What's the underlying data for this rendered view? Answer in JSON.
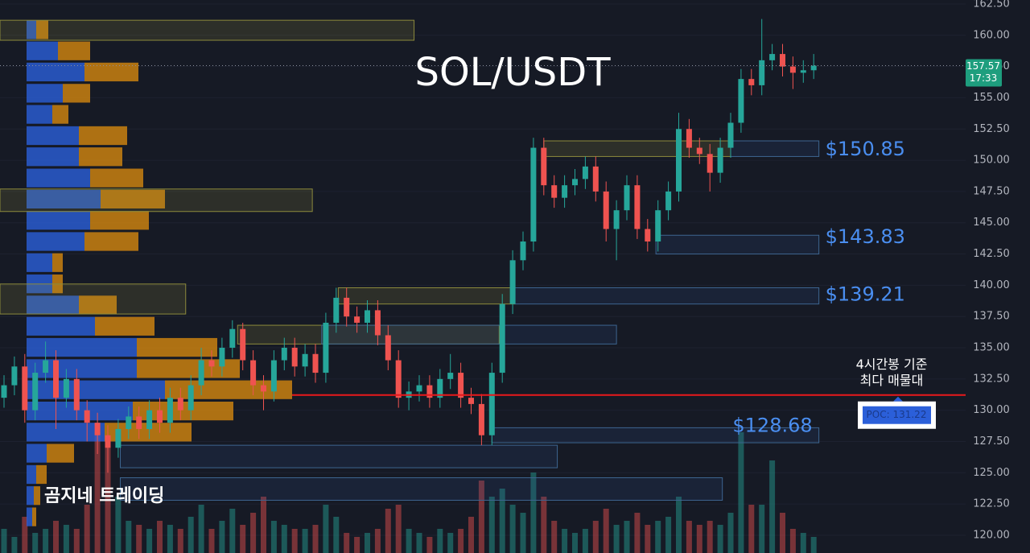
{
  "chart_data": {
    "type": "candlestick",
    "title": "SOL/USDT",
    "watermark": "곰지네 트레이딩",
    "up_color": "#26a69a",
    "down_color": "#ef5350",
    "grid": true,
    "ylim": [
      118.58,
      162.82
    ],
    "yticks": [
      {
        "value": 162.5,
        "label": "162.50"
      },
      {
        "value": 160,
        "label": "160.00"
      },
      {
        "value": 157.5,
        "label": "157.50"
      },
      {
        "value": 155,
        "label": "155.00"
      },
      {
        "value": 152.5,
        "label": "152.50"
      },
      {
        "value": 150,
        "label": "150.00"
      },
      {
        "value": 147.5,
        "label": "147.50"
      },
      {
        "value": 145,
        "label": "145.00"
      },
      {
        "value": 142.5,
        "label": "142.50"
      },
      {
        "value": 140,
        "label": "140.00"
      },
      {
        "value": 137.5,
        "label": "137.50"
      },
      {
        "value": 135,
        "label": "135.00"
      },
      {
        "value": 132.5,
        "label": "132.50"
      },
      {
        "value": 130,
        "label": "130.00"
      },
      {
        "value": 127.5,
        "label": "127.50"
      },
      {
        "value": 125,
        "label": "125.00"
      },
      {
        "value": 122.5,
        "label": "122.50"
      },
      {
        "value": 120,
        "label": "120.00"
      }
    ],
    "open": [
      131,
      132,
      133.5,
      130,
      133,
      134,
      131,
      132.5,
      130,
      129,
      128,
      127,
      128.5,
      129.5,
      128.5,
      130,
      129,
      131,
      130,
      132,
      134,
      133.5,
      135,
      136.5,
      134,
      132,
      131.5,
      134,
      135,
      133.5,
      134.5,
      133,
      137,
      139,
      137.5,
      137,
      138,
      136,
      134,
      131,
      131.5,
      132,
      131,
      132.5,
      133,
      131,
      130.5,
      128,
      133,
      138.5,
      142,
      143.5,
      151,
      148,
      147,
      148,
      148.5,
      149.5,
      147.5,
      144.5,
      146,
      148,
      144.5,
      143.5,
      146,
      147.5,
      152.5,
      151,
      150.5,
      149,
      151,
      153,
      156.5,
      156,
      158,
      158.5,
      157.5,
      157,
      157.2
    ],
    "high": [
      132.8,
      134.3,
      134.5,
      133.8,
      135.5,
      134.8,
      133.3,
      133.3,
      130.8,
      129.8,
      128.8,
      129.3,
      130.3,
      130.3,
      130.8,
      131,
      131.8,
      131.8,
      132.8,
      135,
      134.8,
      135.8,
      137.2,
      137,
      134.8,
      132.8,
      134.8,
      135.8,
      135.8,
      135.3,
      135.3,
      137.8,
      139.8,
      139.8,
      138.3,
      138.8,
      138.8,
      136.8,
      134.8,
      132.3,
      132.8,
      132.8,
      133.3,
      134.5,
      133.8,
      131.8,
      131.3,
      133.8,
      139.3,
      142.8,
      144.3,
      151.8,
      151.8,
      148.8,
      148.8,
      149.3,
      150.3,
      150.3,
      148.3,
      146.8,
      148.8,
      148.8,
      145.3,
      146.8,
      148.3,
      153.8,
      153.3,
      151.8,
      151.3,
      151.8,
      153.8,
      157.3,
      157.3,
      161.3,
      159.3,
      159.3,
      158.3,
      158,
      158.5
    ],
    "low": [
      130.2,
      131.2,
      129,
      129.2,
      132.2,
      128.5,
      130.2,
      129.2,
      127.5,
      126.5,
      125,
      126.2,
      127.7,
      127.7,
      127.7,
      128.2,
      128.2,
      129.2,
      129.2,
      131.2,
      132.7,
      132.7,
      134.2,
      133.2,
      131.2,
      130,
      130.7,
      133.2,
      132.7,
      132.7,
      132.2,
      132.2,
      136.2,
      136.7,
      136.2,
      136.2,
      135.2,
      133.2,
      130.2,
      130,
      130.7,
      130.2,
      130.2,
      131.7,
      130.2,
      129.7,
      127.2,
      127.2,
      132.2,
      137.7,
      141.2,
      142.7,
      147.2,
      146.2,
      146.2,
      147.2,
      147.7,
      146.7,
      143.5,
      142,
      145.2,
      143.7,
      142.7,
      142.7,
      145.2,
      146.7,
      150.2,
      149.7,
      147.5,
      148.2,
      150.2,
      152.2,
      155.2,
      155.2,
      157.2,
      156.7,
      155.7,
      156.2,
      156.5
    ],
    "close": [
      132,
      133.5,
      130,
      133,
      134,
      131,
      132.5,
      130,
      129,
      128,
      127,
      128.5,
      129.5,
      128.5,
      130,
      129,
      131,
      130,
      132,
      134,
      133.5,
      135,
      136.5,
      134,
      132,
      131.5,
      134,
      135,
      133.5,
      134.5,
      133,
      137,
      139,
      137.5,
      137,
      138,
      136,
      134,
      131,
      131.5,
      132,
      131,
      132.5,
      133,
      131,
      130.5,
      128,
      133,
      138.5,
      142,
      143.5,
      151,
      148,
      147,
      148,
      148.5,
      149.5,
      147.5,
      144.5,
      146,
      148,
      144.5,
      143.5,
      146,
      147.5,
      152.5,
      151,
      150.5,
      149,
      151,
      153,
      156.5,
      156,
      158,
      158.5,
      157.5,
      157,
      157.2,
      157.57
    ],
    "volume": [
      30,
      20,
      45,
      25,
      30,
      40,
      35,
      30,
      60,
      150,
      140,
      70,
      40,
      35,
      30,
      40,
      35,
      30,
      45,
      60,
      30,
      40,
      55,
      35,
      50,
      70,
      40,
      35,
      30,
      30,
      35,
      60,
      45,
      25,
      20,
      25,
      30,
      55,
      60,
      30,
      25,
      20,
      30,
      25,
      30,
      45,
      90,
      70,
      80,
      60,
      50,
      100,
      70,
      40,
      30,
      25,
      30,
      40,
      55,
      35,
      40,
      50,
      35,
      40,
      45,
      70,
      40,
      35,
      40,
      35,
      50,
      150,
      60,
      60,
      115,
      50,
      30,
      25,
      20
    ],
    "current_price": 157.57,
    "current_time": "17:33",
    "poc": {
      "value": 131.22,
      "label": "POC: 131.22"
    },
    "poc_note": [
      "4시간봉 기준",
      "최다 매물대"
    ],
    "volume_profile": {
      "buy_color": "#2b5fd9",
      "sell_color": "#d4870f",
      "levels": [
        160.44,
        158.75,
        157.06,
        155.36,
        153.67,
        151.97,
        150.28,
        148.58,
        146.89,
        145.19,
        143.5,
        141.81,
        140.11,
        138.42,
        136.72,
        135.03,
        133.33,
        131.64,
        129.94,
        128.25,
        126.56,
        124.86,
        123.17,
        121.47
      ],
      "buy": [
        12,
        39,
        72,
        45,
        32,
        65,
        65,
        79,
        92,
        79,
        72,
        32,
        32,
        65,
        85,
        137,
        137,
        172,
        132,
        97,
        25,
        12,
        9,
        7
      ],
      "sell": [
        15,
        40,
        67,
        34,
        20,
        60,
        54,
        66,
        80,
        73,
        67,
        13,
        13,
        47,
        74,
        100,
        128,
        158,
        125,
        108,
        34,
        13,
        8,
        5
      ]
    },
    "zones": [
      {
        "kind": "supply",
        "low": 159.6,
        "high": 161.2,
        "from": -0.5,
        "to": 39.5
      },
      {
        "kind": "supply",
        "low": 145.9,
        "high": 147.7,
        "from": -0.5,
        "to": 29.7
      },
      {
        "kind": "supply",
        "low": 137.7,
        "high": 140.1,
        "from": -0.5,
        "to": 17.5
      },
      {
        "kind": "supply",
        "low": 138.5,
        "high": 139.8,
        "from": 32.2,
        "to": 49.2
      },
      {
        "kind": "demand",
        "low": 138.5,
        "high": 139.8,
        "from": 49.2,
        "to": 78.5,
        "level": 139.21,
        "label": "$139.21"
      },
      {
        "kind": "supply",
        "low": 150.3,
        "high": 151.55,
        "from": 52,
        "to": 70
      },
      {
        "kind": "demand",
        "low": 150.3,
        "high": 151.55,
        "from": 70,
        "to": 78.5,
        "level": 150.85,
        "label": "$150.85"
      },
      {
        "kind": "demand",
        "low": 142.5,
        "high": 144,
        "from": 62.8,
        "to": 78.5,
        "level": 143.83,
        "label": "$143.83"
      },
      {
        "kind": "supply",
        "low": 135.3,
        "high": 136.8,
        "from": 22.5,
        "to": 47.7
      },
      {
        "kind": "demand",
        "low": 135.3,
        "high": 136.8,
        "from": 30.6,
        "to": 59
      },
      {
        "kind": "demand",
        "low": 127.4,
        "high": 128.6,
        "from": 47,
        "to": 78.5,
        "level": 128.68,
        "label": "$128.68"
      },
      {
        "kind": "demand",
        "low": 125.4,
        "high": 127.2,
        "from": 11.2,
        "to": 53.3
      },
      {
        "kind": "demand",
        "low": 122.8,
        "high": 124.6,
        "from": 11.2,
        "to": 69.2
      }
    ]
  }
}
